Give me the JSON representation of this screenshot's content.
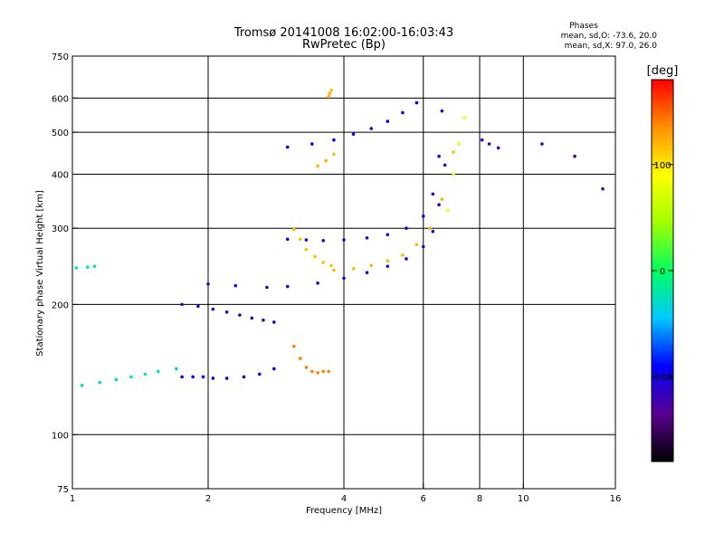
{
  "chart_data": {
    "type": "scatter",
    "title": "Tromsø 20141008 16:02:00-16:03:43",
    "subtitle": "RwPretec (Bp)",
    "xlabel": "Frequency [MHz]",
    "ylabel": "Stationary phase Virtual Height [km]",
    "xscale": "log",
    "yscale": "log",
    "xlim": [
      1,
      16
    ],
    "ylim": [
      75,
      750
    ],
    "xticks": [
      1,
      2,
      4,
      6,
      8,
      10,
      16
    ],
    "xtick_labels": [
      "1",
      "2",
      "4",
      "6",
      "8",
      "10",
      "16"
    ],
    "yticks": [
      75,
      100,
      200,
      300,
      400,
      500,
      600,
      750
    ],
    "ytick_labels": [
      "75",
      "100",
      "200",
      "300",
      "400",
      "500",
      "600",
      "750"
    ],
    "grid": true,
    "legend_title": "Phases",
    "stats": [
      "mean, sd,O: -73.6, 20.0",
      "mean, sd,X:  97.0, 26.0"
    ],
    "colorbar": {
      "label": "[deg]",
      "min": -180,
      "max": 180,
      "ticks": [
        100,
        0,
        -100
      ],
      "tick_labels": [
        "100",
        "0",
        "-100"
      ],
      "colors": [
        "#000000",
        "#5a0090",
        "#0000ff",
        "#00c8ff",
        "#00ff60",
        "#a0ff00",
        "#ffff00",
        "#ff9000",
        "#ff0000"
      ]
    },
    "series": [
      {
        "x": [
          1.05,
          1.15,
          1.25,
          1.35,
          1.45,
          1.55,
          1.7
        ],
        "y": [
          130,
          132,
          134,
          136,
          138,
          140,
          142
        ],
        "phase": -30
      },
      {
        "x": [
          1.02,
          1.08,
          1.12
        ],
        "y": [
          243,
          244,
          245
        ],
        "phase": -20
      },
      {
        "x": [
          1.75,
          1.85,
          1.95,
          2.05,
          2.2,
          2.4,
          2.6,
          2.8
        ],
        "y": [
          136,
          136,
          136,
          135,
          135,
          136,
          138,
          142
        ],
        "phase": -95
      },
      {
        "x": [
          1.75,
          1.9,
          2.05,
          2.2,
          2.35,
          2.5,
          2.65,
          2.8
        ],
        "y": [
          200,
          198,
          195,
          192,
          189,
          186,
          184,
          182
        ],
        "phase": -115
      },
      {
        "x": [
          2.0,
          2.3,
          2.7,
          3.0,
          3.5,
          4.0,
          4.5,
          5.0,
          5.5,
          6.0,
          6.3,
          6.5,
          6.7
        ],
        "y": [
          223,
          221,
          219,
          220,
          224,
          230,
          237,
          245,
          255,
          272,
          295,
          340,
          420
        ],
        "phase": -110
      },
      {
        "x": [
          3.0,
          3.3,
          3.6,
          4.0,
          4.5,
          5.0,
          5.5,
          6.0,
          6.3,
          6.5,
          6.6
        ],
        "y": [
          283,
          282,
          281,
          282,
          285,
          290,
          300,
          320,
          360,
          440,
          560
        ],
        "phase": -105
      },
      {
        "x": [
          3.1,
          3.2,
          3.3,
          3.45,
          3.6,
          3.75
        ],
        "y": [
          298,
          283,
          268,
          258,
          250,
          246
        ],
        "phase": 115
      },
      {
        "x": [
          3.8,
          4.2,
          4.6,
          5.0,
          5.4,
          5.8,
          6.2,
          6.6,
          7.0
        ],
        "y": [
          240,
          242,
          246,
          252,
          260,
          275,
          300,
          350,
          450
        ],
        "phase": 120
      },
      {
        "x": [
          3.0,
          3.4,
          3.8,
          4.2,
          4.6,
          5.0,
          5.4,
          5.8
        ],
        "y": [
          462,
          470,
          480,
          495,
          510,
          530,
          555,
          585
        ],
        "phase": -90
      },
      {
        "x": [
          3.5,
          3.65,
          3.8
        ],
        "y": [
          418,
          430,
          445
        ],
        "phase": 120
      },
      {
        "x": [
          3.7,
          3.72,
          3.75
        ],
        "y": [
          605,
          615,
          625
        ],
        "phase": 120
      },
      {
        "x": [
          3.1,
          3.2,
          3.3,
          3.4,
          3.5,
          3.6,
          3.7
        ],
        "y": [
          160,
          150,
          143,
          140,
          139,
          140,
          140
        ],
        "phase": 140
      },
      {
        "x": [
          6.8,
          7.0,
          7.2,
          7.4
        ],
        "y": [
          330,
          400,
          470,
          540
        ],
        "phase": 80
      },
      {
        "x": [
          8.1,
          8.4,
          8.8,
          11.0,
          13.0,
          15.0
        ],
        "y": [
          480,
          470,
          460,
          470,
          440,
          370
        ],
        "phase": -120
      }
    ]
  }
}
